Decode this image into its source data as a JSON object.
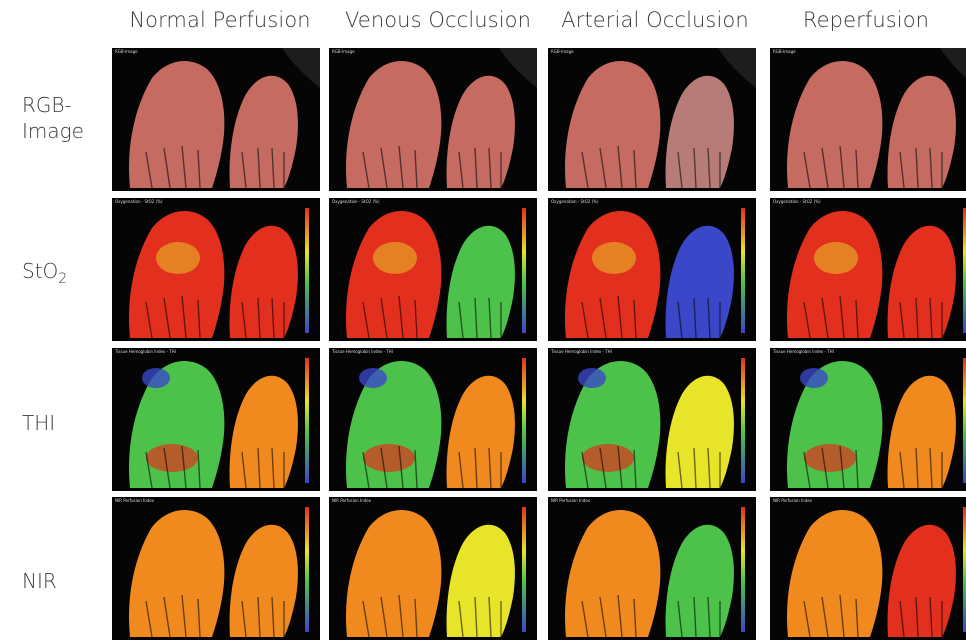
{
  "columns": [
    "Normal Perfusion",
    "Venous Occlusion",
    "Arterial Occlusion",
    "Reperfusion"
  ],
  "rows": [
    {
      "label": "RGB-",
      "label2": "Image"
    },
    {
      "label": "StO",
      "sub": "2"
    },
    {
      "label": "THI"
    },
    {
      "label": "NIR"
    }
  ],
  "panel_tags": {
    "rgb": "RGB-Image",
    "sto2": "Oxygenation - StO2 (%)",
    "thi": "Tissue Hemoglobin Index - THI",
    "nir": "NIR Perfusion Index"
  },
  "colors": {
    "red": "#e3301e",
    "orange": "#f08a1e",
    "yellow": "#e8e42a",
    "green": "#4cc24a",
    "blue": "#3a47c8",
    "skin": "#c56b62"
  }
}
